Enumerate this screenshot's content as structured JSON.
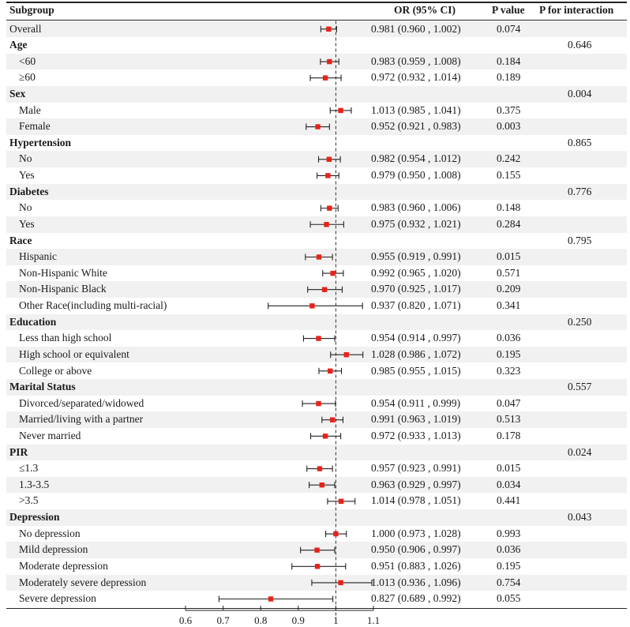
{
  "header": {
    "subgroup": "Subgroup",
    "or": "OR (95% CI)",
    "p": "P value",
    "pint": "P for interaction"
  },
  "chart_data": {
    "type": "forest",
    "xlabel": "",
    "xlim": [
      0.6,
      1.1
    ],
    "xticks": [
      "0.6",
      "0.7",
      "0.8",
      "0.9",
      "1",
      "1.1"
    ],
    "xtick_values": [
      0.6,
      0.7,
      0.8,
      0.9,
      1.0,
      1.1
    ],
    "reference_line": 1.0,
    "marker_color": "#e8221a",
    "rows": [
      {
        "label": "Overall",
        "group": false,
        "indent": false,
        "or": 0.981,
        "lo": 0.96,
        "hi": 1.002,
        "ci": "0.981 (0.960 , 1.002)",
        "p": "0.074",
        "pint": ""
      },
      {
        "label": "Age",
        "group": true,
        "pint": "0.646"
      },
      {
        "label": "<60",
        "group": false,
        "indent": true,
        "or": 0.983,
        "lo": 0.959,
        "hi": 1.008,
        "ci": "0.983 (0.959 , 1.008)",
        "p": "0.184",
        "pint": ""
      },
      {
        "label": "≥60",
        "group": false,
        "indent": true,
        "or": 0.972,
        "lo": 0.932,
        "hi": 1.014,
        "ci": "0.972 (0.932 , 1.014)",
        "p": "0.189",
        "pint": ""
      },
      {
        "label": "Sex",
        "group": true,
        "pint": "0.004"
      },
      {
        "label": "Male",
        "group": false,
        "indent": true,
        "or": 1.013,
        "lo": 0.985,
        "hi": 1.041,
        "ci": "1.013 (0.985 , 1.041)",
        "p": "0.375",
        "pint": ""
      },
      {
        "label": "Female",
        "group": false,
        "indent": true,
        "or": 0.952,
        "lo": 0.921,
        "hi": 0.983,
        "ci": "0.952 (0.921 , 0.983)",
        "p": "0.003",
        "pint": ""
      },
      {
        "label": "Hypertension",
        "group": true,
        "pint": "0.865"
      },
      {
        "label": "No",
        "group": false,
        "indent": true,
        "or": 0.982,
        "lo": 0.954,
        "hi": 1.012,
        "ci": "0.982 (0.954 , 1.012)",
        "p": "0.242",
        "pint": ""
      },
      {
        "label": "Yes",
        "group": false,
        "indent": true,
        "or": 0.979,
        "lo": 0.95,
        "hi": 1.008,
        "ci": "0.979 (0.950 , 1.008)",
        "p": "0.155",
        "pint": ""
      },
      {
        "label": "Diabetes",
        "group": true,
        "pint": "0.776"
      },
      {
        "label": "No",
        "group": false,
        "indent": true,
        "or": 0.983,
        "lo": 0.96,
        "hi": 1.006,
        "ci": "0.983 (0.960 , 1.006)",
        "p": "0.148",
        "pint": ""
      },
      {
        "label": "Yes",
        "group": false,
        "indent": true,
        "or": 0.975,
        "lo": 0.932,
        "hi": 1.021,
        "ci": "0.975 (0.932 , 1.021)",
        "p": "0.284",
        "pint": ""
      },
      {
        "label": "Race",
        "group": true,
        "pint": "0.795"
      },
      {
        "label": "Hispanic",
        "group": false,
        "indent": true,
        "or": 0.955,
        "lo": 0.919,
        "hi": 0.991,
        "ci": "0.955 (0.919 , 0.991)",
        "p": "0.015",
        "pint": ""
      },
      {
        "label": "Non-Hispanic White",
        "group": false,
        "indent": true,
        "or": 0.992,
        "lo": 0.965,
        "hi": 1.02,
        "ci": "0.992 (0.965 , 1.020)",
        "p": "0.571",
        "pint": ""
      },
      {
        "label": "Non-Hispanic Black",
        "group": false,
        "indent": true,
        "or": 0.97,
        "lo": 0.925,
        "hi": 1.017,
        "ci": "0.970 (0.925 , 1.017)",
        "p": "0.209",
        "pint": ""
      },
      {
        "label": "Other Race(including multi-racial)",
        "group": false,
        "indent": true,
        "or": 0.937,
        "lo": 0.82,
        "hi": 1.071,
        "ci": "0.937 (0.820 , 1.071)",
        "p": "0.341",
        "pint": ""
      },
      {
        "label": "Education",
        "group": true,
        "pint": "0.250"
      },
      {
        "label": "Less than high school",
        "group": false,
        "indent": true,
        "or": 0.954,
        "lo": 0.914,
        "hi": 0.997,
        "ci": "0.954 (0.914 , 0.997)",
        "p": "0.036",
        "pint": ""
      },
      {
        "label": "High school or equivalent",
        "group": false,
        "indent": true,
        "or": 1.028,
        "lo": 0.986,
        "hi": 1.072,
        "ci": "1.028 (0.986 , 1.072)",
        "p": "0.195",
        "pint": ""
      },
      {
        "label": "College or above",
        "group": false,
        "indent": true,
        "or": 0.985,
        "lo": 0.955,
        "hi": 1.015,
        "ci": "0.985 (0.955 , 1.015)",
        "p": "0.323",
        "pint": ""
      },
      {
        "label": "Marital Status",
        "group": true,
        "pint": "0.557"
      },
      {
        "label": "Divorced/separated/widowed",
        "group": false,
        "indent": true,
        "or": 0.954,
        "lo": 0.911,
        "hi": 0.999,
        "ci": "0.954 (0.911 , 0.999)",
        "p": "0.047",
        "pint": ""
      },
      {
        "label": "Married/living with a partner",
        "group": false,
        "indent": true,
        "or": 0.991,
        "lo": 0.963,
        "hi": 1.019,
        "ci": "0.991 (0.963 , 1.019)",
        "p": "0.513",
        "pint": ""
      },
      {
        "label": "Never married",
        "group": false,
        "indent": true,
        "or": 0.972,
        "lo": 0.933,
        "hi": 1.013,
        "ci": "0.972 (0.933 , 1.013)",
        "p": "0.178",
        "pint": ""
      },
      {
        "label": "PIR",
        "group": true,
        "pint": "0.024"
      },
      {
        "label": "≤1.3",
        "group": false,
        "indent": true,
        "or": 0.957,
        "lo": 0.923,
        "hi": 0.991,
        "ci": "0.957 (0.923 , 0.991)",
        "p": "0.015",
        "pint": ""
      },
      {
        "label": "1.3-3.5",
        "group": false,
        "indent": true,
        "or": 0.963,
        "lo": 0.929,
        "hi": 0.997,
        "ci": "0.963 (0.929 , 0.997)",
        "p": "0.034",
        "pint": ""
      },
      {
        "label": ">3.5",
        "group": false,
        "indent": true,
        "or": 1.014,
        "lo": 0.978,
        "hi": 1.051,
        "ci": "1.014 (0.978 , 1.051)",
        "p": "0.441",
        "pint": ""
      },
      {
        "label": "Depression",
        "group": true,
        "pint": "0.043"
      },
      {
        "label": "No depression",
        "group": false,
        "indent": true,
        "or": 1.0,
        "lo": 0.973,
        "hi": 1.028,
        "ci": "1.000 (0.973 , 1.028)",
        "p": "0.993",
        "pint": ""
      },
      {
        "label": "Mild depression",
        "group": false,
        "indent": true,
        "or": 0.95,
        "lo": 0.906,
        "hi": 0.997,
        "ci": "0.950 (0.906 , 0.997)",
        "p": "0.036",
        "pint": ""
      },
      {
        "label": "Moderate depression",
        "group": false,
        "indent": true,
        "or": 0.951,
        "lo": 0.883,
        "hi": 1.026,
        "ci": "0.951 (0.883 , 1.026)",
        "p": "0.195",
        "pint": ""
      },
      {
        "label": "Moderately severe depression",
        "group": false,
        "indent": true,
        "or": 1.013,
        "lo": 0.936,
        "hi": 1.096,
        "ci": "1.013 (0.936 , 1.096)",
        "p": "0.754",
        "pint": ""
      },
      {
        "label": "Severe depression",
        "group": false,
        "indent": true,
        "or": 0.827,
        "lo": 0.689,
        "hi": 0.992,
        "ci": "0.827 (0.689 , 0.992)",
        "p": "0.055",
        "pint": ""
      }
    ]
  }
}
